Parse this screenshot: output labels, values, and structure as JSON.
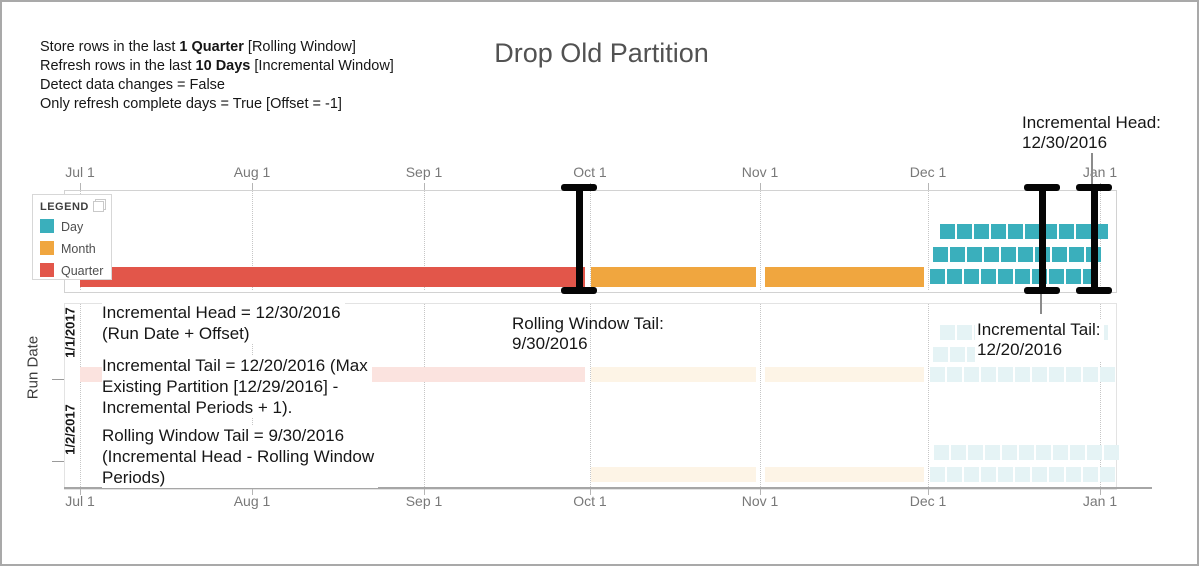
{
  "header": {
    "title": "Drop Old Partition",
    "config_lines": [
      {
        "pre": "Store rows in the last ",
        "bold": "1 Quarter",
        "post": " [Rolling Window]"
      },
      {
        "pre": "Refresh rows in the last ",
        "bold": "10 Days",
        "post": " [Incremental Window]"
      },
      {
        "pre": "Detect data changes = False",
        "bold": "",
        "post": ""
      },
      {
        "pre": "Only refresh complete days = True [Offset = -1]",
        "bold": "",
        "post": ""
      }
    ]
  },
  "legend": {
    "title": "LEGEND",
    "items": [
      {
        "label": "Day",
        "color_key": "day"
      },
      {
        "label": "Month",
        "color_key": "month"
      },
      {
        "label": "Quarter",
        "color_key": "quarter"
      }
    ]
  },
  "axis": {
    "ticks": [
      "Jul 1",
      "Aug 1",
      "Sep 1",
      "Oct 1",
      "Nov 1",
      "Dec 1",
      "Jan 1"
    ],
    "run_date_label": "Run Date",
    "run_dates": [
      "1/1/2017",
      "1/2/2017"
    ]
  },
  "callouts": {
    "incremental_head": "Incremental Head:\n12/30/2016",
    "rolling_window_tail": "Rolling Window Tail:\n9/30/2016",
    "incremental_tail": "Incremental Tail:\n12/20/2016"
  },
  "notes": {
    "head": "Incremental Head = 12/30/2016\n(Run Date + Offset)",
    "tail": "Incremental Tail = 12/20/2016 (Max\nExisting Partition [12/29/2016] -\nIncremental Periods + 1).",
    "rolling": "Rolling Window Tail = 9/30/2016\n(Incremental Head - Rolling Window\nPeriods)"
  },
  "colors": {
    "day": "#3AAFBC",
    "month": "#F0A63F",
    "quarter": "#E2564A",
    "day_faded": "#E5F3F5",
    "month_faded": "#FDF4E6",
    "quarter_faded": "#FBE3DF"
  },
  "chart_data": {
    "type": "timeline",
    "title": "Drop Old Partition",
    "x_ticks": [
      "Jul 1",
      "Aug 1",
      "Sep 1",
      "Oct 1",
      "Nov 1",
      "Dec 1",
      "Jan 1"
    ],
    "x_range": [
      "7/1/2016",
      "1/1/2017"
    ],
    "legend": [
      {
        "label": "Day",
        "color": "#3AAFBC"
      },
      {
        "label": "Month",
        "color": "#F0A63F"
      },
      {
        "label": "Quarter",
        "color": "#E2564A"
      }
    ],
    "settings": {
      "rolling_window": "1 Quarter",
      "incremental_window": "10 Days",
      "detect_data_changes": "False",
      "only_refresh_complete_days": "True",
      "offset": "-1"
    },
    "current_partitions": [
      {
        "grain": "Quarter",
        "start": "7/1/2016",
        "end": "9/30/2016"
      },
      {
        "grain": "Month",
        "start": "10/1/2016",
        "end": "10/31/2016"
      },
      {
        "grain": "Month",
        "start": "11/1/2016",
        "end": "11/30/2016"
      },
      {
        "grain": "Day",
        "start": "12/1/2016",
        "end": "12/31/2016",
        "days": 31
      }
    ],
    "markers": [
      {
        "name": "Rolling Window Tail",
        "date": "9/30/2016"
      },
      {
        "name": "Incremental Tail",
        "date": "12/20/2016"
      },
      {
        "name": "Incremental Head",
        "date": "12/30/2016"
      }
    ],
    "run_rows": [
      {
        "run_date": "1/1/2017",
        "partitions": [
          {
            "grain": "Quarter",
            "start": "7/1/2016",
            "end": "9/30/2016",
            "faded": true
          },
          {
            "grain": "Month",
            "start": "10/1/2016",
            "end": "10/31/2016",
            "faded": true
          },
          {
            "grain": "Month",
            "start": "11/1/2016",
            "end": "11/30/2016",
            "faded": true
          },
          {
            "grain": "Day",
            "start": "12/1/2016",
            "end": "12/31/2016",
            "faded": true
          }
        ]
      },
      {
        "run_date": "1/2/2017",
        "partitions": [
          {
            "grain": "Month",
            "start": "10/1/2016",
            "end": "10/31/2016",
            "faded": true
          },
          {
            "grain": "Month",
            "start": "11/1/2016",
            "end": "11/30/2016",
            "faded": true
          },
          {
            "grain": "Day",
            "start": "12/1/2016",
            "end": "1/1/2017",
            "faded": true
          }
        ]
      }
    ]
  }
}
